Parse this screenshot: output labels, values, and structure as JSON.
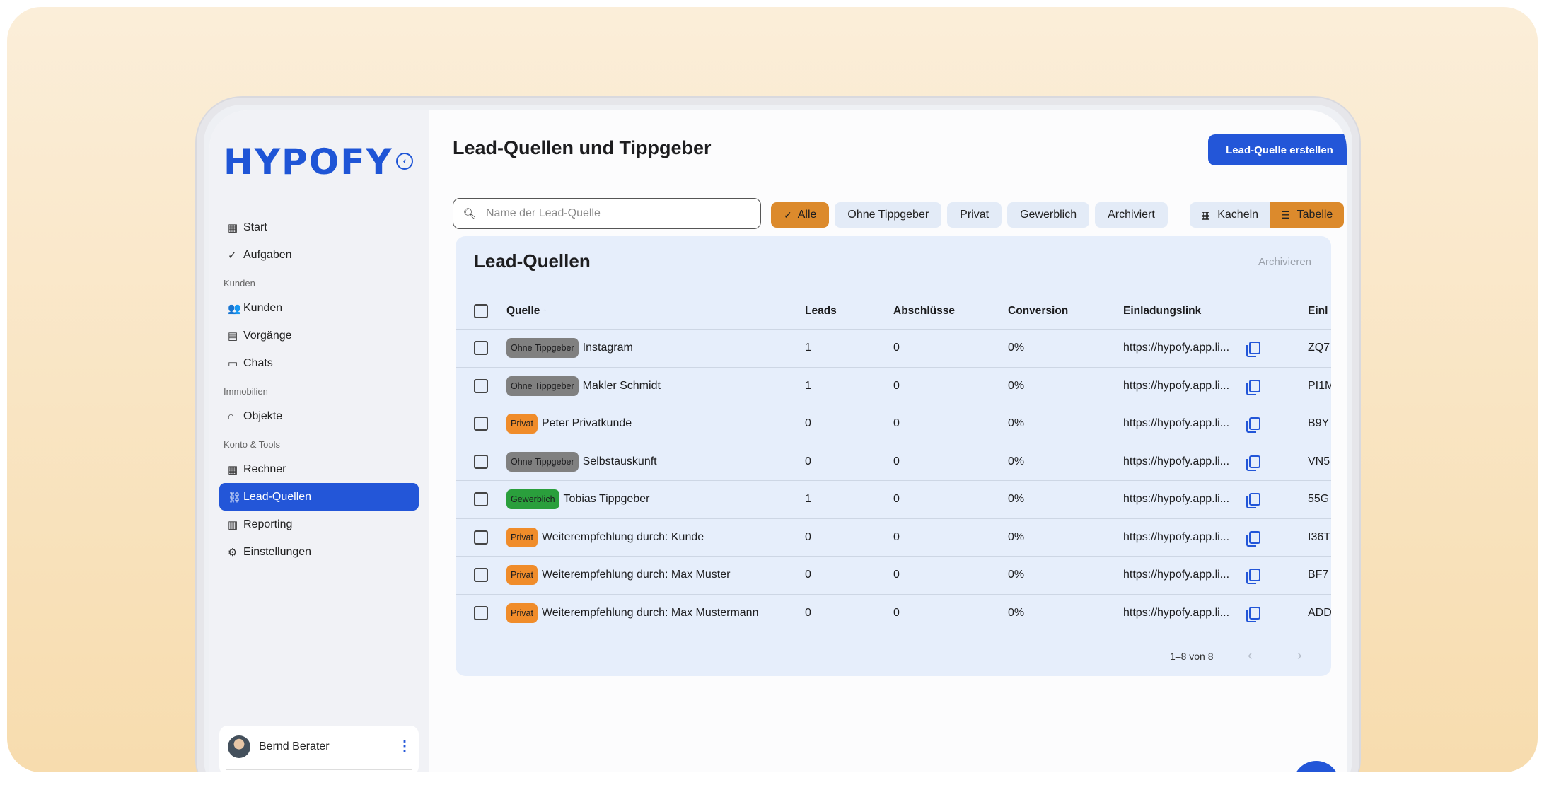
{
  "brand": {
    "logo_text": "HYPOFY",
    "accent": "#2356d8"
  },
  "sidebar": {
    "items": [
      {
        "icon": "dashboard-icon",
        "glyph": "▦",
        "label": "Start"
      },
      {
        "icon": "task-check-icon",
        "glyph": "✓",
        "label": "Aufgaben"
      }
    ],
    "sections": [
      {
        "title": "Kunden",
        "items": [
          {
            "icon": "people-icon",
            "glyph": "👥",
            "label": "Kunden"
          },
          {
            "icon": "folder-icon",
            "glyph": "▤",
            "label": "Vorgänge"
          },
          {
            "icon": "chat-icon",
            "glyph": "▭",
            "label": "Chats"
          }
        ]
      },
      {
        "title": "Immobilien",
        "items": [
          {
            "icon": "home-icon",
            "glyph": "⌂",
            "label": "Objekte"
          }
        ]
      },
      {
        "title": "Konto & Tools",
        "items": [
          {
            "icon": "calculator-icon",
            "glyph": "▦",
            "label": "Rechner"
          },
          {
            "icon": "link-icon",
            "glyph": "⛓",
            "label": "Lead-Quellen",
            "active": true
          },
          {
            "icon": "bar-chart-icon",
            "glyph": "▥",
            "label": "Reporting"
          },
          {
            "icon": "gear-icon",
            "glyph": "⚙",
            "label": "Einstellungen"
          }
        ]
      }
    ],
    "user": {
      "name": "Bernd Berater"
    }
  },
  "header": {
    "title": "Lead-Quellen und Tippgeber",
    "create_label": "Lead-Quelle erstellen"
  },
  "search": {
    "placeholder": "Name der Lead-Quelle",
    "value": ""
  },
  "filters": [
    {
      "label": "Alle",
      "active": true
    },
    {
      "label": "Ohne Tippgeber",
      "active": false
    },
    {
      "label": "Privat",
      "active": false
    },
    {
      "label": "Gewerblich",
      "active": false
    },
    {
      "label": "Archiviert",
      "active": false
    }
  ],
  "view_toggle": [
    {
      "label": "Kacheln",
      "icon": "grid-icon",
      "active": false
    },
    {
      "label": "Tabelle",
      "icon": "list-icon",
      "active": true
    }
  ],
  "card": {
    "title": "Lead-Quellen",
    "archive_label": "Archivieren",
    "columns": [
      "Quelle",
      "Leads",
      "Abschlüsse",
      "Conversion",
      "Einladungslink",
      "Einl"
    ],
    "rows": [
      {
        "badge": "Ohne Tippgeber",
        "badge_type": "gray",
        "name": "Instagram",
        "leads": "1",
        "abschluesse": "0",
        "conversion": "0%",
        "link": "https://hypofy.app.li...",
        "code": "ZQ7"
      },
      {
        "badge": "Ohne Tippgeber",
        "badge_type": "gray",
        "name": "Makler Schmidt",
        "leads": "1",
        "abschluesse": "0",
        "conversion": "0%",
        "link": "https://hypofy.app.li...",
        "code": "PI1M"
      },
      {
        "badge": "Privat",
        "badge_type": "orange",
        "name": "Peter Privatkunde",
        "leads": "0",
        "abschluesse": "0",
        "conversion": "0%",
        "link": "https://hypofy.app.li...",
        "code": "B9Y"
      },
      {
        "badge": "Ohne Tippgeber",
        "badge_type": "gray",
        "name": "Selbstauskunft",
        "leads": "0",
        "abschluesse": "0",
        "conversion": "0%",
        "link": "https://hypofy.app.li...",
        "code": "VN5"
      },
      {
        "badge": "Gewerblich",
        "badge_type": "green",
        "name": "Tobias Tippgeber",
        "leads": "1",
        "abschluesse": "0",
        "conversion": "0%",
        "link": "https://hypofy.app.li...",
        "code": "55G"
      },
      {
        "badge": "Privat",
        "badge_type": "orange",
        "name": "Weiterempfehlung durch: Kunde",
        "leads": "0",
        "abschluesse": "0",
        "conversion": "0%",
        "link": "https://hypofy.app.li...",
        "code": "I36T"
      },
      {
        "badge": "Privat",
        "badge_type": "orange",
        "name": "Weiterempfehlung durch: Max Muster",
        "leads": "0",
        "abschluesse": "0",
        "conversion": "0%",
        "link": "https://hypofy.app.li...",
        "code": "BF7"
      },
      {
        "badge": "Privat",
        "badge_type": "orange",
        "name": "Weiterempfehlung durch: Max Mustermann",
        "leads": "0",
        "abschluesse": "0",
        "conversion": "0%",
        "link": "https://hypofy.app.li...",
        "code": "ADD"
      }
    ],
    "pagination": {
      "info": "1–8 von 8"
    }
  },
  "help": {
    "glyph": "?"
  }
}
